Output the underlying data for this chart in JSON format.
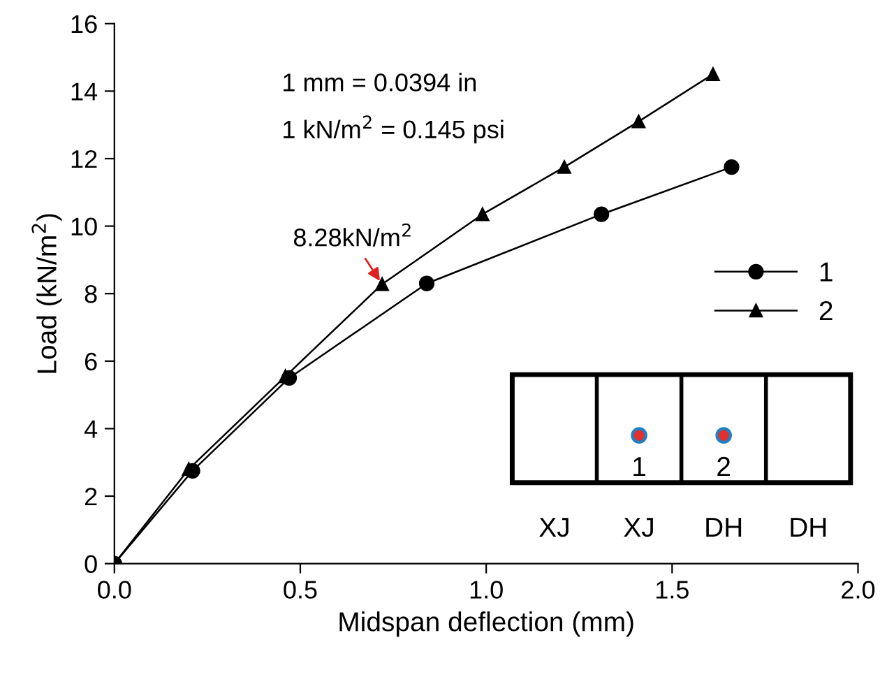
{
  "chart_data": {
    "type": "line",
    "xlabel": "Midspan deflection (mm)",
    "ylabel": "Load (kN/m$^{2}$)",
    "xlim": [
      0,
      2.0
    ],
    "xticks": [
      {
        "value": 0,
        "label": "0.0"
      },
      0.5,
      {
        "value": 1,
        "label": "1.0"
      },
      1.5,
      {
        "value": 2,
        "label": "2.0"
      }
    ],
    "ylim": [
      0,
      16
    ],
    "yticks": [
      0,
      2,
      4,
      6,
      8,
      10,
      12,
      14,
      16
    ],
    "grid": false,
    "legend": "right",
    "series": [
      {
        "name": "1",
        "color": "#000000",
        "marker": "circle",
        "x": [
          0,
          0.21,
          0.47,
          0.84,
          1.31,
          1.66
        ],
        "values": [
          0,
          2.75,
          5.5,
          8.3,
          10.35,
          11.75
        ]
      },
      {
        "name": "2",
        "color": "#000000",
        "marker": "triangle",
        "x": [
          0,
          0.2,
          0.46,
          0.72,
          0.99,
          1.21,
          1.41,
          1.61
        ],
        "values": [
          0,
          2.8,
          5.55,
          8.28,
          10.35,
          11.75,
          13.1,
          14.5
        ]
      }
    ],
    "annotations": [
      {
        "text": "8.28kN/m$^{2}$",
        "x": 0.72,
        "y": 8.28
      },
      "1 mm = 0.0394 in",
      "1 kN/m$^{2}$ = 0.145 psi",
      "1",
      "2",
      "XJ",
      "XJ",
      "DH",
      "DH"
    ]
  }
}
